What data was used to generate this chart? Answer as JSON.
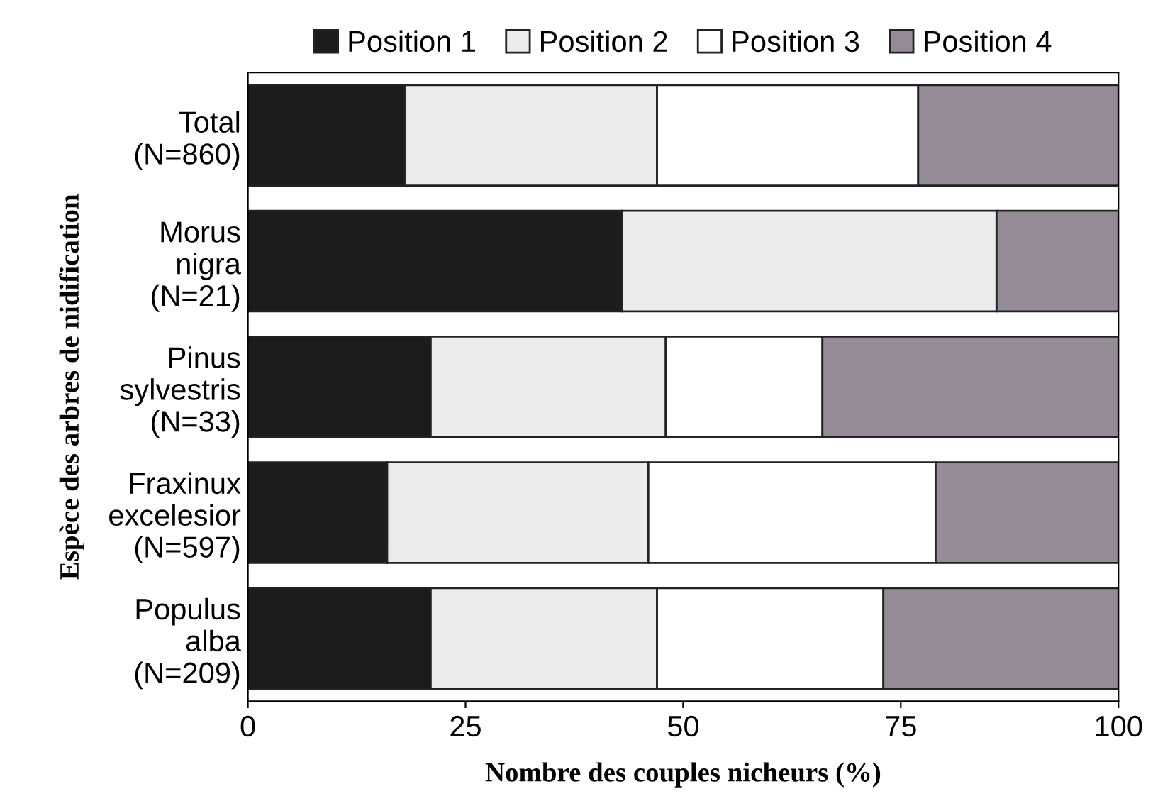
{
  "chart_data": {
    "type": "bar",
    "orientation": "horizontal",
    "stacked": true,
    "xlabel": "Nombre des couples nicheurs (%)",
    "ylabel": "Espèce des arbres de nidification",
    "categories": [
      "Total\n(N=860)",
      "Morus\nnigra\n(N=21)",
      "Pinus\nsylvestris\n(N=33)",
      "Fraxinux\nexcelesior\n(N=597)",
      "Populus\nalba\n(N=209)"
    ],
    "series": [
      {
        "name": "Position 1",
        "color": "#1c1c1c",
        "values": [
          18,
          43,
          21,
          16,
          21
        ]
      },
      {
        "name": "Position 2",
        "color": "#ebebed",
        "values": [
          29,
          43,
          27,
          30,
          26
        ]
      },
      {
        "name": "Position 3",
        "color": "#ffffff",
        "values": [
          30,
          0,
          18,
          33,
          26
        ]
      },
      {
        "name": "Position 4",
        "color": "#958c98",
        "values": [
          23,
          14,
          34,
          21,
          27
        ]
      }
    ],
    "xlim": [
      0,
      100
    ],
    "xticks": [
      0,
      25,
      50,
      75,
      100
    ],
    "grid": false,
    "legend": "top"
  }
}
